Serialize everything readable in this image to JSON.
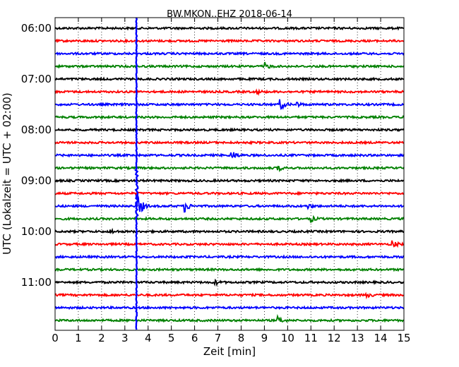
{
  "chart_data": {
    "type": "line",
    "title": "BW.MKON..EHZ 2018-06-14",
    "xlabel": "Zeit  [min]",
    "ylabel": "UTC (Lokalzeit = UTC + 02:00)",
    "xlim": [
      0,
      15
    ],
    "x_ticks": [
      "0",
      "1",
      "2",
      "3",
      "4",
      "5",
      "6",
      "7",
      "8",
      "9",
      "10",
      "11",
      "12",
      "13",
      "14",
      "15"
    ],
    "y_ticks": [
      "06:00",
      "07:00",
      "08:00",
      "09:00",
      "10:00",
      "11:00"
    ],
    "grid": "vertical-dotted",
    "trace_colors": [
      "#000000",
      "#ff0000",
      "#0000ff",
      "#008000"
    ],
    "traces": [
      {
        "start": "06:00",
        "color": "#000000"
      },
      {
        "start": "06:15",
        "color": "#ff0000"
      },
      {
        "start": "06:30",
        "color": "#0000ff"
      },
      {
        "start": "06:45",
        "color": "#008000"
      },
      {
        "start": "07:00",
        "color": "#000000"
      },
      {
        "start": "07:15",
        "color": "#ff0000"
      },
      {
        "start": "07:30",
        "color": "#0000ff"
      },
      {
        "start": "07:45",
        "color": "#008000"
      },
      {
        "start": "08:00",
        "color": "#000000"
      },
      {
        "start": "08:15",
        "color": "#ff0000"
      },
      {
        "start": "08:30",
        "color": "#0000ff"
      },
      {
        "start": "08:45",
        "color": "#008000"
      },
      {
        "start": "09:00",
        "color": "#000000"
      },
      {
        "start": "09:15",
        "color": "#ff0000"
      },
      {
        "start": "09:30",
        "color": "#0000ff"
      },
      {
        "start": "09:45",
        "color": "#008000"
      },
      {
        "start": "10:00",
        "color": "#000000"
      },
      {
        "start": "10:15",
        "color": "#ff0000"
      },
      {
        "start": "10:30",
        "color": "#0000ff"
      },
      {
        "start": "10:45",
        "color": "#008000"
      },
      {
        "start": "11:00",
        "color": "#000000"
      },
      {
        "start": "11:15",
        "color": "#ff0000"
      },
      {
        "start": "11:30",
        "color": "#0000ff"
      },
      {
        "start": "11:45",
        "color": "#008000"
      }
    ],
    "events": [
      {
        "trace": "06:45",
        "x_min": 9.0,
        "strength": 0.8
      },
      {
        "trace": "07:15",
        "x_min": 8.7,
        "strength": 0.35
      },
      {
        "trace": "07:30",
        "x_min": 9.7,
        "strength": 1.0
      },
      {
        "trace": "07:30",
        "x_min": 10.4,
        "strength": 0.4
      },
      {
        "trace": "08:30",
        "x_min": 7.6,
        "strength": 0.9
      },
      {
        "trace": "08:45",
        "x_min": 9.6,
        "strength": 0.5
      },
      {
        "trace": "09:30",
        "x_min": 3.6,
        "strength": 2.2
      },
      {
        "trace": "09:30",
        "x_min": 5.6,
        "strength": 1.1
      },
      {
        "trace": "09:30",
        "x_min": 10.9,
        "strength": 0.4
      },
      {
        "trace": "09:45",
        "x_min": 11.0,
        "strength": 0.6
      },
      {
        "trace": "10:00",
        "x_min": 2.4,
        "strength": 0.4
      },
      {
        "trace": "10:15",
        "x_min": 14.5,
        "strength": 0.8
      },
      {
        "trace": "11:00",
        "x_min": 6.9,
        "strength": 0.4
      },
      {
        "trace": "11:15",
        "x_min": 13.4,
        "strength": 0.4
      },
      {
        "trace": "11:45",
        "x_min": 9.6,
        "strength": 0.7
      }
    ],
    "spike_x_min": 3.5,
    "spike_color": "#0000ff"
  }
}
